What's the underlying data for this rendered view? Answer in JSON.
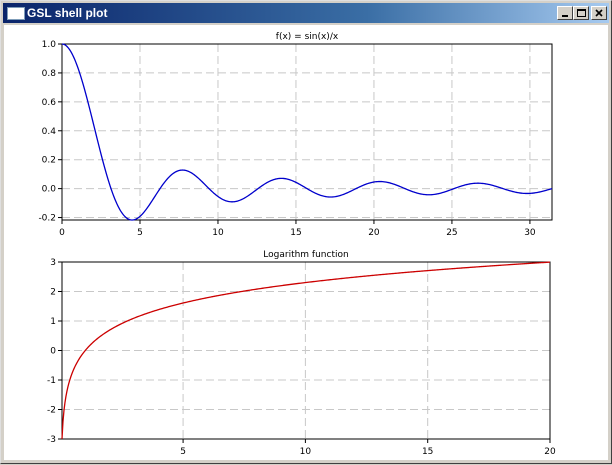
{
  "window": {
    "title": "GSL shell plot",
    "controls": {
      "minimize": "minimize-icon",
      "maximize": "maximize-icon",
      "close": "close-icon"
    }
  },
  "chart_data": [
    {
      "type": "line",
      "title": "f(x) = sin(x)/x",
      "xlabel": "",
      "ylabel": "",
      "xlim": [
        0,
        31.4159
      ],
      "ylim": [
        -0.217,
        1.0
      ],
      "xticks": [
        0,
        5,
        10,
        15,
        20,
        25,
        30
      ],
      "xtick_labels": [
        "0",
        "5",
        "10",
        "15",
        "20",
        "25",
        "30"
      ],
      "yticks": [
        -0.2,
        0.0,
        0.2,
        0.4,
        0.6,
        0.8,
        1.0
      ],
      "ytick_labels": [
        "-0.2",
        "0.0",
        "0.2",
        "0.4",
        "0.6",
        "0.8",
        "1.0"
      ],
      "grid": true,
      "color": "#0000cc",
      "series": [
        {
          "function": "sin(x)/x",
          "x": [
            0,
            1,
            2,
            3,
            4,
            4.49,
            5,
            6,
            7,
            7.73,
            8,
            9,
            10,
            10.9,
            12,
            13,
            14.07,
            15,
            16,
            17.22,
            18,
            19,
            20.37,
            21,
            22,
            23.52,
            25,
            26.67,
            28,
            29.81,
            31.4159
          ],
          "y": [
            1.0,
            0.841,
            0.455,
            0.047,
            -0.189,
            -0.217,
            -0.192,
            -0.047,
            0.094,
            0.128,
            0.124,
            0.046,
            -0.054,
            -0.091,
            -0.045,
            0.032,
            0.071,
            0.043,
            -0.018,
            -0.058,
            -0.042,
            0.008,
            0.049,
            0.04,
            -0.0,
            -0.042,
            -0.005,
            0.037,
            0.01,
            -0.033,
            0.0
          ]
        }
      ]
    },
    {
      "type": "line",
      "title": "Logarithm function",
      "xlabel": "",
      "ylabel": "",
      "xlim": [
        0.05,
        20
      ],
      "ylim": [
        -3,
        3
      ],
      "xticks": [
        5,
        10,
        15,
        20
      ],
      "xtick_labels": [
        "5",
        "10",
        "15",
        "20"
      ],
      "yticks": [
        -3,
        -2,
        -1,
        0,
        1,
        2,
        3
      ],
      "ytick_labels": [
        "-3",
        "-2",
        "-1",
        "0",
        "1",
        "2",
        "3"
      ],
      "grid": true,
      "color": "#cc0000",
      "series": [
        {
          "function": "ln(x)",
          "x": [
            0.05,
            0.1,
            0.2,
            0.5,
            1,
            2,
            3,
            5,
            7.5,
            10,
            12.5,
            15,
            17.5,
            20
          ],
          "y": [
            -3.0,
            -2.303,
            -1.609,
            -0.693,
            0.0,
            0.693,
            1.099,
            1.609,
            2.015,
            2.303,
            2.526,
            2.708,
            2.862,
            2.996
          ]
        }
      ]
    }
  ]
}
